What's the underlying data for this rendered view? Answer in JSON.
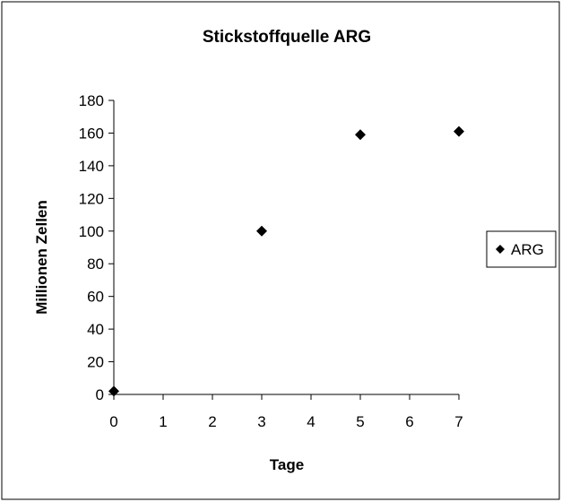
{
  "chart_data": {
    "type": "scatter",
    "title": "Stickstoffquelle ARG",
    "xlabel": "Tage",
    "ylabel": "Millionen Zellen",
    "xlim": [
      0,
      7
    ],
    "ylim": [
      0,
      180
    ],
    "x_ticks": [
      0,
      1,
      2,
      3,
      4,
      5,
      6,
      7
    ],
    "y_ticks": [
      0,
      20,
      40,
      60,
      80,
      100,
      120,
      140,
      160,
      180
    ],
    "grid": false,
    "legend_position": "right",
    "marker": "diamond",
    "series": [
      {
        "name": "ARG",
        "color": "#000000",
        "points": [
          {
            "x": 0,
            "y": 2
          },
          {
            "x": 3,
            "y": 100
          },
          {
            "x": 5,
            "y": 159
          },
          {
            "x": 7,
            "y": 161
          }
        ]
      }
    ]
  }
}
